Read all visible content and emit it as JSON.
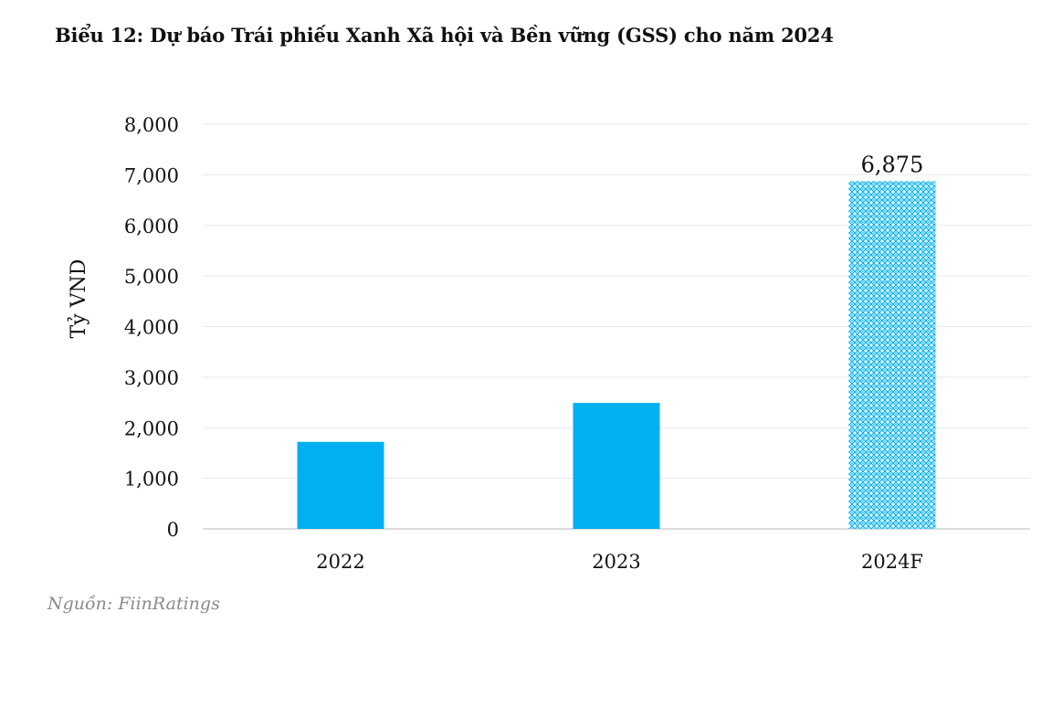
{
  "chart_data": {
    "type": "bar",
    "title": "Biểu 12: Dự báo Trái phiếu Xanh Xã hội và Bền vững (GSS) cho năm 2024",
    "ylabel": "Tỷ VND",
    "xlabel": "",
    "categories": [
      "2022",
      "2023",
      "2024F"
    ],
    "values": [
      1720,
      2490,
      6875
    ],
    "data_labels": [
      "",
      "",
      "6,875"
    ],
    "bar_fills": [
      "solid",
      "solid",
      "patterned"
    ],
    "ylim": [
      0,
      8000
    ],
    "yticks": [
      0,
      1000,
      2000,
      3000,
      4000,
      5000,
      6000,
      7000,
      8000
    ],
    "ytick_labels": [
      "0",
      "1,000",
      "2,000",
      "3,000",
      "4,000",
      "5,000",
      "6,000",
      "7,000",
      "8,000"
    ],
    "grid": true,
    "legend": "none",
    "colors": {
      "bar": "#00b0f0",
      "pattern_bg": "#ffffff",
      "grid": "#e8e8e8",
      "axis": "#d0d0d0"
    }
  },
  "source": "Nguồn: FiinRatings"
}
